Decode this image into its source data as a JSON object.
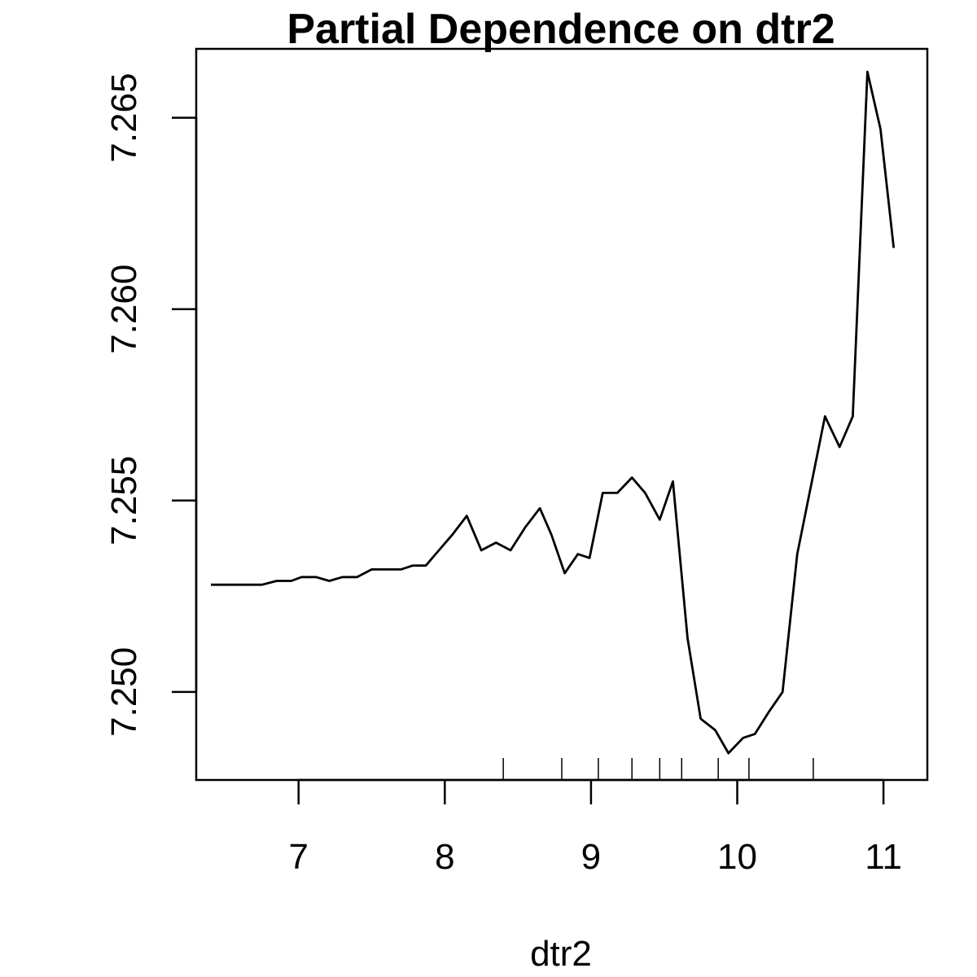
{
  "chart_data": {
    "type": "line",
    "title": "Partial Dependence on dtr2",
    "xlabel": "dtr2",
    "ylabel": "",
    "xlim": [
      6.3,
      11.3
    ],
    "ylim": [
      7.2477,
      7.2668
    ],
    "x_ticks": [
      {
        "value": 7,
        "label": "7"
      },
      {
        "value": 8,
        "label": "8"
      },
      {
        "value": 9,
        "label": "9"
      },
      {
        "value": 10,
        "label": "10"
      },
      {
        "value": 11,
        "label": "11"
      }
    ],
    "y_ticks": [
      {
        "value": 7.25,
        "label": "7.250"
      },
      {
        "value": 7.255,
        "label": "7.255"
      },
      {
        "value": 7.26,
        "label": "7.260"
      },
      {
        "value": 7.265,
        "label": "7.265"
      }
    ],
    "grid": false,
    "series": [
      {
        "color": "#000000",
        "x": [
          6.4,
          6.5,
          6.6,
          6.7,
          6.75,
          6.85,
          6.95,
          7.02,
          7.12,
          7.21,
          7.3,
          7.4,
          7.5,
          7.6,
          7.7,
          7.78,
          7.87,
          7.96,
          8.05,
          8.15,
          8.25,
          8.35,
          8.45,
          8.55,
          8.65,
          8.73,
          8.82,
          8.91,
          8.99,
          9.08,
          9.18,
          9.28,
          9.37,
          9.47,
          9.56,
          9.66,
          9.75,
          9.85,
          9.94,
          10.04,
          10.12,
          10.22,
          10.31,
          10.41,
          10.5,
          10.6,
          10.7,
          10.79,
          10.89,
          10.98,
          11.07
        ],
        "y": [
          7.2528,
          7.2528,
          7.2528,
          7.2528,
          7.2528,
          7.2529,
          7.2529,
          7.253,
          7.253,
          7.2529,
          7.253,
          7.253,
          7.2532,
          7.2532,
          7.2532,
          7.2533,
          7.2533,
          7.2537,
          7.2541,
          7.2546,
          7.2537,
          7.2539,
          7.2537,
          7.2543,
          7.2548,
          7.2541,
          7.2531,
          7.2536,
          7.2535,
          7.2552,
          7.2552,
          7.2556,
          7.2552,
          7.2545,
          7.2555,
          7.2514,
          7.2493,
          7.249,
          7.2484,
          7.2488,
          7.2489,
          7.2495,
          7.25,
          7.2536,
          7.2553,
          7.2572,
          7.2564,
          7.2572,
          7.2662,
          7.2647,
          7.2616
        ]
      }
    ],
    "rug": [
      8.4,
      8.8,
      9.05,
      9.28,
      9.47,
      9.62,
      9.87,
      10.08,
      10.52
    ]
  }
}
